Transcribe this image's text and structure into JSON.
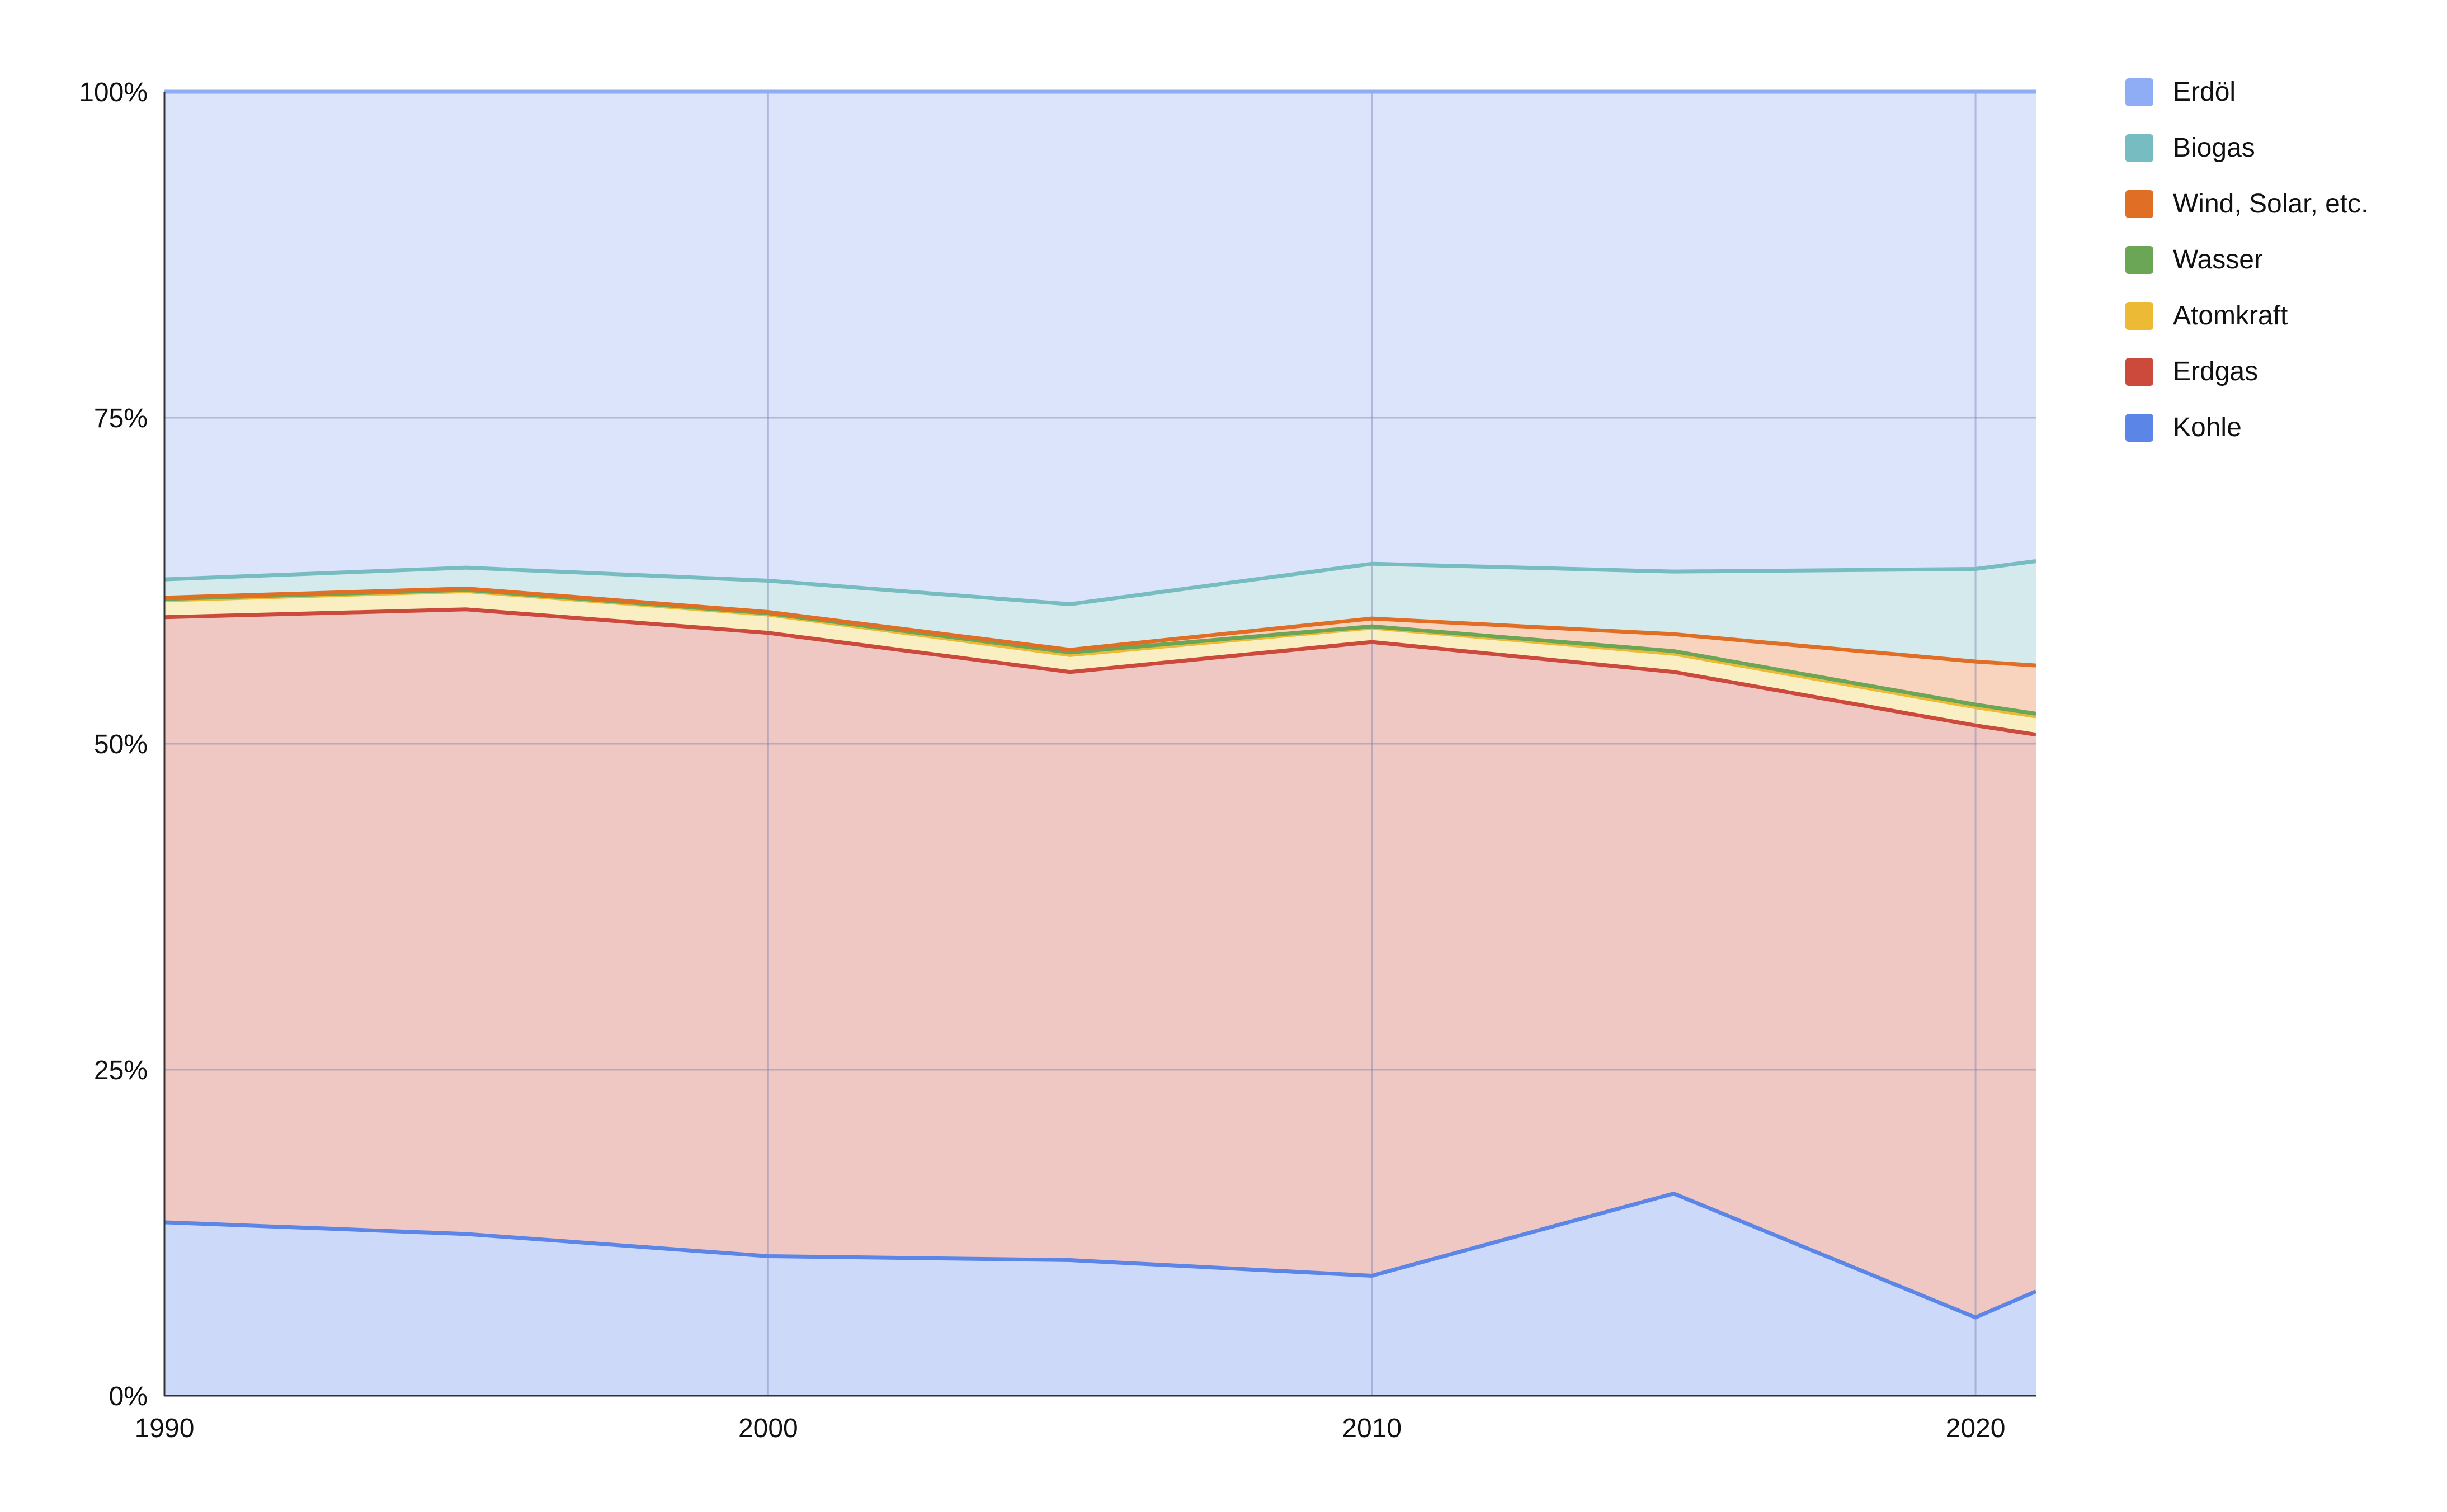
{
  "chart_data": {
    "type": "area",
    "stacked": "percent",
    "x": [
      1990,
      1995,
      2000,
      2005,
      2010,
      2015,
      2020,
      2021
    ],
    "x_ticks": [
      "1990",
      "2000",
      "2010",
      "2020"
    ],
    "x_tick_values": [
      1990,
      2000,
      2010,
      2020
    ],
    "xlim": [
      1990,
      2021
    ],
    "y_ticks": [
      "0%",
      "25%",
      "50%",
      "75%",
      "100%"
    ],
    "y_tick_values": [
      0,
      25,
      50,
      75,
      100
    ],
    "ylim": [
      0,
      100
    ],
    "grid": true,
    "legend_position": "right",
    "series": [
      {
        "name": "Kohle",
        "color": "#5b86e8",
        "fill": "#cdd9f8",
        "values": [
          13.3,
          12.4,
          10.7,
          10.4,
          9.2,
          15.5,
          6.0,
          8.0
        ]
      },
      {
        "name": "Erdgas",
        "color": "#cc4a3c",
        "fill": "#efc8c4",
        "values": [
          46.4,
          47.9,
          47.8,
          45.1,
          48.6,
          40.0,
          45.4,
          42.7
        ]
      },
      {
        "name": "Atomkraft",
        "color": "#ecba35",
        "fill": "#faeec3",
        "values": [
          1.3,
          1.4,
          1.4,
          1.3,
          1.1,
          1.4,
          1.4,
          1.4
        ]
      },
      {
        "name": "Wasser",
        "color": "#6aa656",
        "fill": "#d5e9cb",
        "values": [
          0.1,
          0.1,
          0.1,
          0.2,
          0.1,
          0.2,
          0.2,
          0.2
        ]
      },
      {
        "name": "Wind, Solar, etc.",
        "color": "#e06f25",
        "fill": "#f8d3bd",
        "values": [
          0.1,
          0.1,
          0.1,
          0.2,
          0.6,
          1.3,
          3.3,
          3.7
        ]
      },
      {
        "name": "Biogas",
        "color": "#76bcc0",
        "fill": "#d4eaec",
        "values": [
          1.4,
          1.6,
          2.4,
          3.5,
          4.2,
          4.8,
          7.1,
          8.0
        ]
      },
      {
        "name": "Erdöl",
        "color": "#8fadf4",
        "fill": "#dce4fc",
        "values": [
          37.4,
          36.5,
          37.5,
          39.3,
          36.2,
          36.8,
          36.6,
          36.0
        ]
      }
    ],
    "legend_order": [
      "Erdöl",
      "Biogas",
      "Wind, Solar, etc.",
      "Wasser",
      "Atomkraft",
      "Erdgas",
      "Kohle"
    ]
  }
}
